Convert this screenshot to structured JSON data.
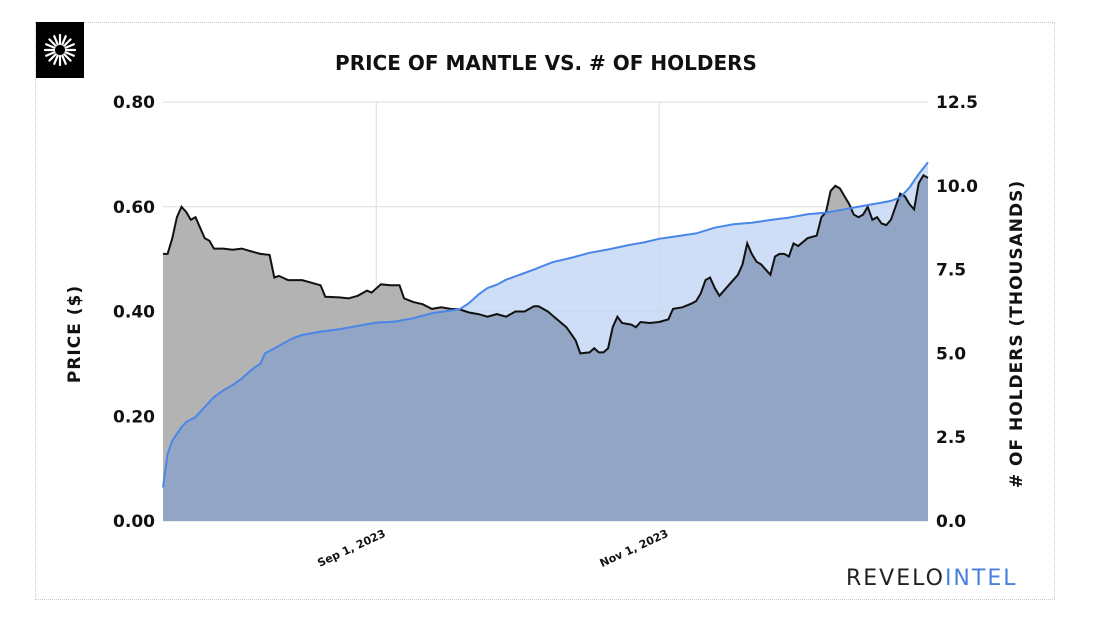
{
  "brand": {
    "part1": "REVELO",
    "part2": "INTEL",
    "color1": "#222222",
    "color2": "#4a7fe0"
  },
  "logo": {
    "icon": "sunburst-logo-icon"
  },
  "chart_data": {
    "type": "area",
    "title": "PRICE OF MANTLE VS. # OF HOLDERS",
    "ylabel": "PRICE ($)",
    "y2label": "# OF HOLDERS (THOUSANDS)",
    "ylim": [
      0,
      0.8
    ],
    "y2lim": [
      0,
      12.5
    ],
    "yticks": [
      "0.00",
      "0.20",
      "0.40",
      "0.60",
      "0.80"
    ],
    "y2ticks": [
      "0.0",
      "2.5",
      "5.0",
      "7.5",
      "10.0",
      "12.5"
    ],
    "xlim": [
      "2023-07-17",
      "2023-12-29"
    ],
    "xticks": [
      {
        "date": "2023-09-01",
        "label": "Sep 1, 2023"
      },
      {
        "date": "2023-11-01",
        "label": "Nov 1, 2023"
      }
    ],
    "grid": true,
    "series": [
      {
        "axis": "left",
        "color": "#111111",
        "fill": "#b3b3b3",
        "points": [
          [
            "2023-07-17",
            0.51
          ],
          [
            "2023-07-18",
            0.51
          ],
          [
            "2023-07-19",
            0.54
          ],
          [
            "2023-07-20",
            0.58
          ],
          [
            "2023-07-21",
            0.6
          ],
          [
            "2023-07-22",
            0.59
          ],
          [
            "2023-07-23",
            0.575
          ],
          [
            "2023-07-24",
            0.58
          ],
          [
            "2023-07-25",
            0.56
          ],
          [
            "2023-07-26",
            0.54
          ],
          [
            "2023-07-27",
            0.535
          ],
          [
            "2023-07-28",
            0.52
          ],
          [
            "2023-07-30",
            0.52
          ],
          [
            "2023-08-01",
            0.518
          ],
          [
            "2023-08-03",
            0.52
          ],
          [
            "2023-08-05",
            0.515
          ],
          [
            "2023-08-07",
            0.51
          ],
          [
            "2023-08-09",
            0.508
          ],
          [
            "2023-08-10",
            0.465
          ],
          [
            "2023-08-11",
            0.468
          ],
          [
            "2023-08-13",
            0.46
          ],
          [
            "2023-08-16",
            0.46
          ],
          [
            "2023-08-18",
            0.455
          ],
          [
            "2023-08-20",
            0.45
          ],
          [
            "2023-08-21",
            0.428
          ],
          [
            "2023-08-24",
            0.427
          ],
          [
            "2023-08-26",
            0.425
          ],
          [
            "2023-08-28",
            0.43
          ],
          [
            "2023-08-30",
            0.44
          ],
          [
            "2023-08-31",
            0.436
          ],
          [
            "2023-09-02",
            0.452
          ],
          [
            "2023-09-04",
            0.45
          ],
          [
            "2023-09-06",
            0.45
          ],
          [
            "2023-09-07",
            0.425
          ],
          [
            "2023-09-09",
            0.418
          ],
          [
            "2023-09-11",
            0.414
          ],
          [
            "2023-09-13",
            0.405
          ],
          [
            "2023-09-15",
            0.408
          ],
          [
            "2023-09-17",
            0.405
          ],
          [
            "2023-09-19",
            0.404
          ],
          [
            "2023-09-21",
            0.398
          ],
          [
            "2023-09-23",
            0.395
          ],
          [
            "2023-09-25",
            0.39
          ],
          [
            "2023-09-27",
            0.395
          ],
          [
            "2023-09-29",
            0.39
          ],
          [
            "2023-10-01",
            0.4
          ],
          [
            "2023-10-03",
            0.4
          ],
          [
            "2023-10-05",
            0.41
          ],
          [
            "2023-10-06",
            0.41
          ],
          [
            "2023-10-08",
            0.4
          ],
          [
            "2023-10-10",
            0.385
          ],
          [
            "2023-10-12",
            0.37
          ],
          [
            "2023-10-14",
            0.345
          ],
          [
            "2023-10-15",
            0.32
          ],
          [
            "2023-10-17",
            0.322
          ],
          [
            "2023-10-18",
            0.33
          ],
          [
            "2023-10-19",
            0.322
          ],
          [
            "2023-10-20",
            0.322
          ],
          [
            "2023-10-21",
            0.33
          ],
          [
            "2023-10-22",
            0.37
          ],
          [
            "2023-10-23",
            0.39
          ],
          [
            "2023-10-24",
            0.378
          ],
          [
            "2023-10-26",
            0.375
          ],
          [
            "2023-10-27",
            0.37
          ],
          [
            "2023-10-28",
            0.38
          ],
          [
            "2023-10-30",
            0.378
          ],
          [
            "2023-11-01",
            0.38
          ],
          [
            "2023-11-03",
            0.385
          ],
          [
            "2023-11-04",
            0.405
          ],
          [
            "2023-11-06",
            0.408
          ],
          [
            "2023-11-08",
            0.415
          ],
          [
            "2023-11-09",
            0.42
          ],
          [
            "2023-11-10",
            0.435
          ],
          [
            "2023-11-11",
            0.46
          ],
          [
            "2023-11-12",
            0.465
          ],
          [
            "2023-11-13",
            0.445
          ],
          [
            "2023-11-14",
            0.43
          ],
          [
            "2023-11-15",
            0.44
          ],
          [
            "2023-11-16",
            0.45
          ],
          [
            "2023-11-18",
            0.47
          ],
          [
            "2023-11-19",
            0.49
          ],
          [
            "2023-11-20",
            0.53
          ],
          [
            "2023-11-21",
            0.51
          ],
          [
            "2023-11-22",
            0.495
          ],
          [
            "2023-11-23",
            0.49
          ],
          [
            "2023-11-24",
            0.48
          ],
          [
            "2023-11-25",
            0.47
          ],
          [
            "2023-11-26",
            0.505
          ],
          [
            "2023-11-27",
            0.51
          ],
          [
            "2023-11-28",
            0.51
          ],
          [
            "2023-11-29",
            0.505
          ],
          [
            "2023-11-30",
            0.53
          ],
          [
            "2023-12-01",
            0.525
          ],
          [
            "2023-12-03",
            0.54
          ],
          [
            "2023-12-05",
            0.545
          ],
          [
            "2023-12-06",
            0.58
          ],
          [
            "2023-12-07",
            0.59
          ],
          [
            "2023-12-08",
            0.63
          ],
          [
            "2023-12-09",
            0.64
          ],
          [
            "2023-12-10",
            0.635
          ],
          [
            "2023-12-11",
            0.62
          ],
          [
            "2023-12-12",
            0.605
          ],
          [
            "2023-12-13",
            0.585
          ],
          [
            "2023-12-14",
            0.58
          ],
          [
            "2023-12-15",
            0.585
          ],
          [
            "2023-12-16",
            0.6
          ],
          [
            "2023-12-17",
            0.575
          ],
          [
            "2023-12-18",
            0.58
          ],
          [
            "2023-12-19",
            0.568
          ],
          [
            "2023-12-20",
            0.565
          ],
          [
            "2023-12-21",
            0.575
          ],
          [
            "2023-12-22",
            0.6
          ],
          [
            "2023-12-23",
            0.625
          ],
          [
            "2023-12-24",
            0.62
          ],
          [
            "2023-12-25",
            0.605
          ],
          [
            "2023-12-26",
            0.595
          ],
          [
            "2023-12-27",
            0.645
          ],
          [
            "2023-12-28",
            0.66
          ],
          [
            "2023-12-29",
            0.655
          ]
        ]
      },
      {
        "axis": "right",
        "color": "#4a86e8",
        "fill": "#c6d8f5",
        "points": [
          [
            "2023-07-17",
            1.0
          ],
          [
            "2023-07-18",
            2.0
          ],
          [
            "2023-07-19",
            2.4
          ],
          [
            "2023-07-20",
            2.6
          ],
          [
            "2023-07-21",
            2.8
          ],
          [
            "2023-07-22",
            2.95
          ],
          [
            "2023-07-24",
            3.1
          ],
          [
            "2023-07-26",
            3.4
          ],
          [
            "2023-07-28",
            3.7
          ],
          [
            "2023-07-30",
            3.9
          ],
          [
            "2023-08-01",
            4.05
          ],
          [
            "2023-08-03",
            4.25
          ],
          [
            "2023-08-05",
            4.5
          ],
          [
            "2023-08-07",
            4.7
          ],
          [
            "2023-08-08",
            5.0
          ],
          [
            "2023-08-10",
            5.15
          ],
          [
            "2023-08-12",
            5.3
          ],
          [
            "2023-08-14",
            5.45
          ],
          [
            "2023-08-16",
            5.55
          ],
          [
            "2023-08-20",
            5.65
          ],
          [
            "2023-08-24",
            5.72
          ],
          [
            "2023-08-28",
            5.82
          ],
          [
            "2023-09-01",
            5.92
          ],
          [
            "2023-09-05",
            5.95
          ],
          [
            "2023-09-09",
            6.05
          ],
          [
            "2023-09-13",
            6.2
          ],
          [
            "2023-09-17",
            6.28
          ],
          [
            "2023-09-19",
            6.32
          ],
          [
            "2023-09-21",
            6.5
          ],
          [
            "2023-09-23",
            6.75
          ],
          [
            "2023-09-25",
            6.95
          ],
          [
            "2023-09-27",
            7.05
          ],
          [
            "2023-09-29",
            7.2
          ],
          [
            "2023-10-01",
            7.3
          ],
          [
            "2023-10-03",
            7.4
          ],
          [
            "2023-10-05",
            7.5
          ],
          [
            "2023-10-09",
            7.72
          ],
          [
            "2023-10-13",
            7.85
          ],
          [
            "2023-10-17",
            8.0
          ],
          [
            "2023-10-21",
            8.1
          ],
          [
            "2023-10-25",
            8.22
          ],
          [
            "2023-10-29",
            8.32
          ],
          [
            "2023-11-01",
            8.42
          ],
          [
            "2023-11-05",
            8.5
          ],
          [
            "2023-11-09",
            8.58
          ],
          [
            "2023-11-13",
            8.75
          ],
          [
            "2023-11-17",
            8.85
          ],
          [
            "2023-11-21",
            8.9
          ],
          [
            "2023-11-25",
            8.98
          ],
          [
            "2023-11-29",
            9.05
          ],
          [
            "2023-12-03",
            9.15
          ],
          [
            "2023-12-07",
            9.2
          ],
          [
            "2023-12-11",
            9.3
          ],
          [
            "2023-12-15",
            9.4
          ],
          [
            "2023-12-19",
            9.5
          ],
          [
            "2023-12-21",
            9.55
          ],
          [
            "2023-12-23",
            9.65
          ],
          [
            "2023-12-25",
            9.95
          ],
          [
            "2023-12-27",
            10.35
          ],
          [
            "2023-12-29",
            10.7
          ]
        ]
      }
    ]
  }
}
